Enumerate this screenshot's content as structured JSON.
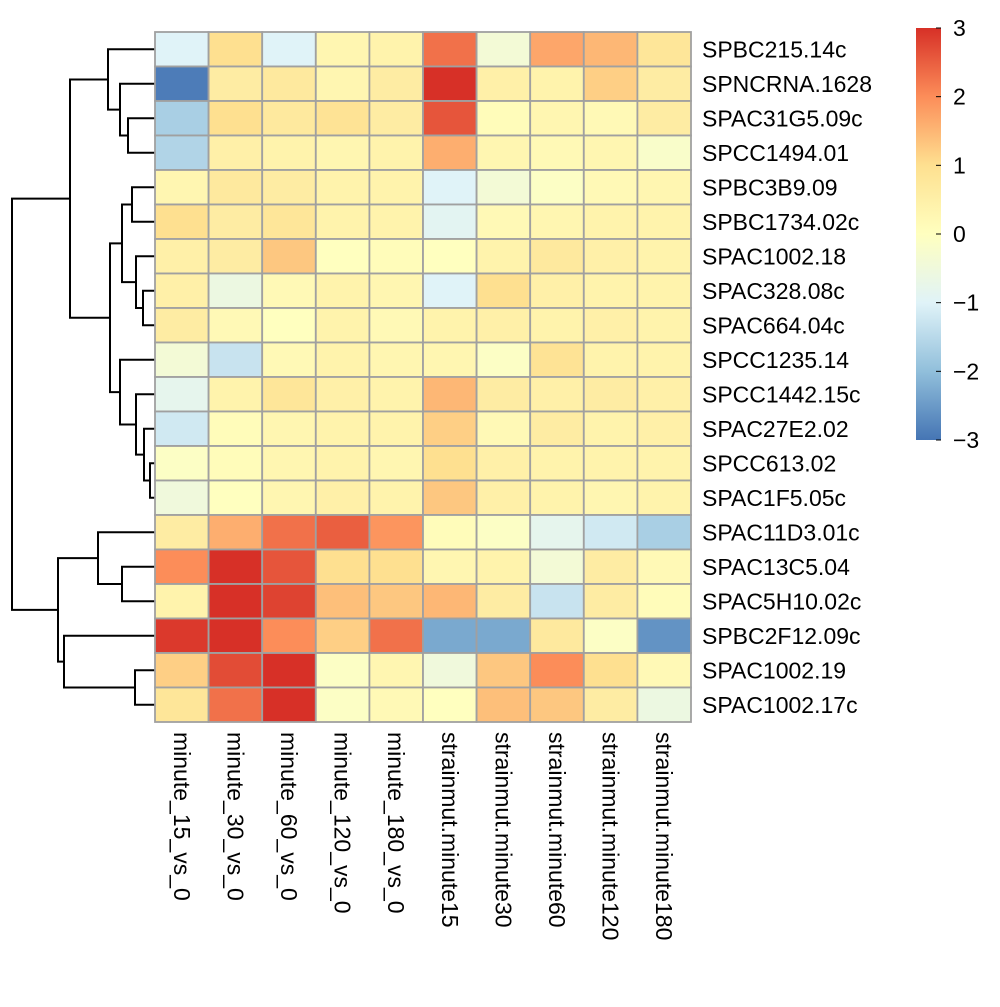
{
  "chart_data": {
    "type": "heatmap",
    "title": "",
    "columns": [
      "minute_15_vs_0",
      "minute_30_vs_0",
      "minute_60_vs_0",
      "minute_120_vs_0",
      "minute_180_vs_0",
      "strainmut.minute15",
      "strainmut.minute30",
      "strainmut.minute60",
      "strainmut.minute120",
      "strainmut.minute180"
    ],
    "rows": [
      "SPBC215.14c",
      "SPNCRNA.1628",
      "SPAC31G5.09c",
      "SPCC1494.01",
      "SPBC3B9.09",
      "SPBC1734.02c",
      "SPAC1002.18",
      "SPAC328.08c",
      "SPAC664.04c",
      "SPCC1235.14",
      "SPCC1442.15c",
      "SPAC27E2.02",
      "SPCC613.02",
      "SPAC1F5.05c",
      "SPAC11D3.01c",
      "SPAC13C5.04",
      "SPAC5H10.02c",
      "SPBC2F12.09c",
      "SPAC1002.19",
      "SPAC1002.17c"
    ],
    "values": [
      [
        -1.0,
        1.0,
        -1.0,
        0.3,
        0.4,
        2.3,
        -0.4,
        1.7,
        1.5,
        0.8
      ],
      [
        -2.9,
        0.6,
        0.7,
        0.3,
        0.6,
        3.0,
        0.5,
        0.4,
        1.2,
        0.6
      ],
      [
        -1.7,
        1.0,
        0.7,
        0.9,
        0.6,
        2.6,
        0.1,
        0.3,
        0.2,
        0.6
      ],
      [
        -1.6,
        0.5,
        0.4,
        0.3,
        0.4,
        1.6,
        0.3,
        0.2,
        0.3,
        -0.2
      ],
      [
        0.3,
        0.7,
        0.6,
        0.4,
        0.4,
        -1.0,
        -0.4,
        -0.1,
        0.2,
        0.3
      ],
      [
        1.0,
        0.6,
        0.8,
        0.4,
        0.4,
        -0.9,
        0.2,
        0.3,
        0.4,
        0.4
      ],
      [
        0.5,
        0.6,
        1.3,
        0.0,
        0.1,
        0.0,
        0.4,
        0.7,
        0.5,
        0.4
      ],
      [
        0.5,
        -0.6,
        0.2,
        0.4,
        0.3,
        -1.0,
        1.0,
        0.5,
        0.4,
        0.4
      ],
      [
        0.6,
        0.2,
        0.0,
        0.4,
        0.2,
        0.4,
        0.5,
        0.4,
        0.5,
        0.4
      ],
      [
        -0.4,
        -1.3,
        0.2,
        0.4,
        0.3,
        0.3,
        -0.1,
        0.9,
        0.4,
        0.4
      ],
      [
        -0.8,
        0.4,
        0.8,
        0.5,
        0.4,
        1.5,
        0.6,
        0.5,
        0.6,
        0.5
      ],
      [
        -1.2,
        0.1,
        0.3,
        0.4,
        0.4,
        1.2,
        0.2,
        0.6,
        0.4,
        0.5
      ],
      [
        -0.1,
        0.1,
        0.3,
        0.4,
        0.3,
        1.0,
        0.5,
        0.4,
        0.4,
        0.4
      ],
      [
        -0.5,
        0.0,
        0.3,
        0.5,
        0.4,
        1.3,
        0.5,
        0.4,
        0.3,
        0.4
      ],
      [
        0.6,
        1.6,
        2.3,
        2.5,
        1.9,
        0.1,
        -0.1,
        -0.8,
        -1.2,
        -1.7
      ],
      [
        2.0,
        3.0,
        2.6,
        1.0,
        1.0,
        0.3,
        0.4,
        -0.4,
        0.6,
        0.2
      ],
      [
        0.4,
        3.0,
        2.8,
        1.4,
        1.3,
        1.5,
        0.6,
        -1.3,
        0.6,
        0.1
      ],
      [
        2.9,
        3.0,
        2.0,
        1.2,
        2.3,
        -2.3,
        -2.3,
        0.7,
        -0.1,
        -2.6
      ],
      [
        1.2,
        2.7,
        3.0,
        -0.1,
        0.3,
        -0.5,
        1.3,
        2.0,
        1.0,
        0.2
      ],
      [
        0.8,
        2.3,
        3.0,
        -0.1,
        0.2,
        0.0,
        1.4,
        1.3,
        0.6,
        -0.6
      ]
    ],
    "colorbar": {
      "range": [
        -3,
        3
      ],
      "ticks": [
        3,
        2,
        1,
        0,
        -1,
        -2,
        -3
      ],
      "tick_labels": [
        "3",
        "2",
        "1",
        "0",
        "−1",
        "−2",
        "−3"
      ],
      "colors": [
        "#4575B4",
        "#91BFDB",
        "#E0F3F8",
        "#FFFFBF",
        "#FEE090",
        "#FC8D59",
        "#D73027"
      ]
    },
    "cell_border_color": "#A0A0A0",
    "row_dendrogram": true,
    "column_dendrogram": false,
    "legend_position": "top-right"
  }
}
